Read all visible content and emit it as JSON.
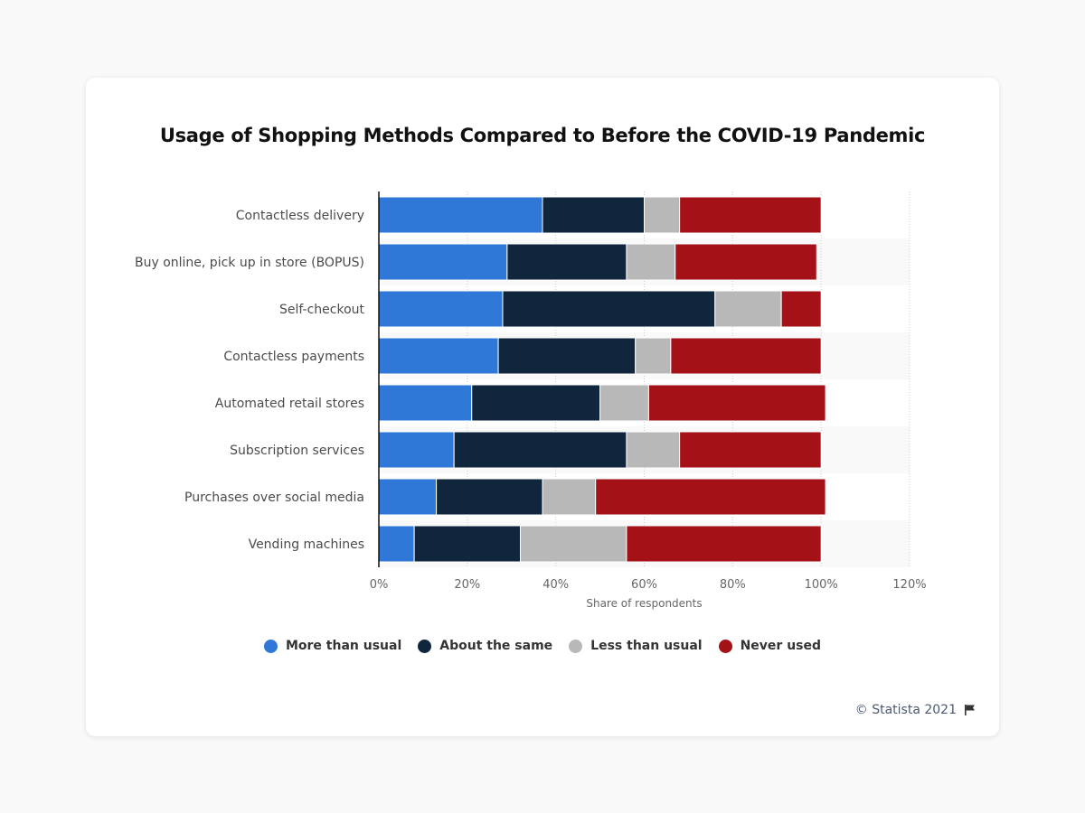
{
  "chart_data": {
    "type": "bar",
    "orientation": "horizontal",
    "stacked": true,
    "title": "Usage of Shopping Methods Compared to Before the COVID-19 Pandemic",
    "xlabel": "Share of respondents",
    "ylabel": "",
    "xlim": [
      0,
      120
    ],
    "x_ticks": [
      "0%",
      "20%",
      "40%",
      "60%",
      "80%",
      "100%",
      "120%"
    ],
    "grid": true,
    "legend_position": "bottom",
    "categories": [
      "Contactless delivery",
      "Buy online, pick up in store (BOPUS)",
      "Self-checkout",
      "Contactless payments",
      "Automated retail stores",
      "Subscription services",
      "Purchases over social media",
      "Vending machines"
    ],
    "series": [
      {
        "name": "More than usual",
        "color": "#2f78d8",
        "values": [
          37,
          29,
          28,
          27,
          21,
          17,
          13,
          8
        ]
      },
      {
        "name": "About the same",
        "color": "#10263d",
        "values": [
          23,
          27,
          48,
          31,
          29,
          39,
          24,
          24
        ]
      },
      {
        "name": "Less than usual",
        "color": "#b8b8b8",
        "values": [
          8,
          11,
          15,
          8,
          11,
          12,
          12,
          24
        ]
      },
      {
        "name": "Never used",
        "color": "#a41117",
        "values": [
          32,
          32,
          9,
          34,
          40,
          32,
          52,
          44
        ]
      }
    ]
  },
  "footer": {
    "credit": "© Statista 2021",
    "icon": "flag-icon"
  }
}
